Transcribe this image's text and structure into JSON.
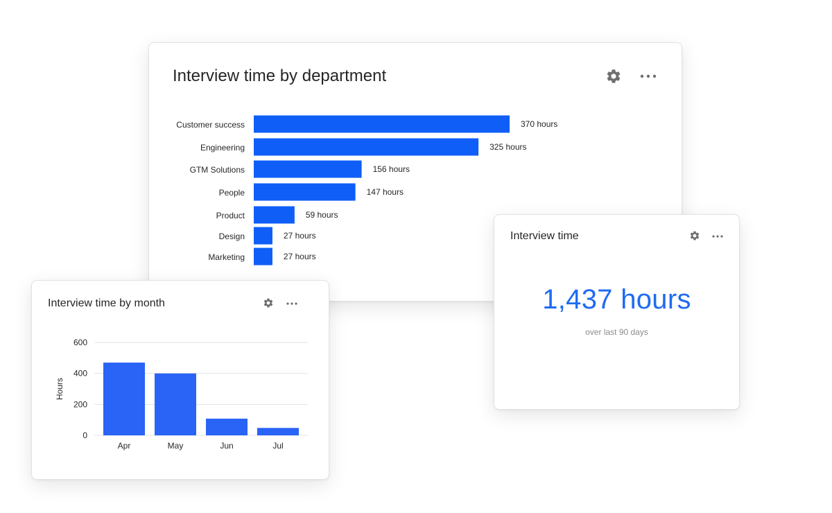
{
  "theme": {
    "accent": "#1f6bf2",
    "bar": "#0f5ef7",
    "bar_month": "#2a64f6",
    "grid": "#e3e3e3"
  },
  "icons": {
    "settings": "gear-icon",
    "more": "more-horizontal-icon"
  },
  "dept_card": {
    "title": "Interview time by department"
  },
  "total_card": {
    "title": "Interview time",
    "value": "1,437 hours",
    "subtitle": "over last 90 days"
  },
  "month_card": {
    "title": "Interview time by month"
  },
  "chart_data": [
    {
      "type": "bar",
      "orientation": "horizontal",
      "title": "Interview time by department",
      "categories": [
        "Customer success",
        "Engineering",
        "GTM Solutions",
        "People",
        "Product",
        "Design",
        "Marketing"
      ],
      "values": [
        370,
        325,
        156,
        147,
        59,
        27,
        27
      ],
      "value_labels": [
        "370 hours",
        "325 hours",
        "156 hours",
        "147 hours",
        "59 hours",
        "27 hours",
        "27 hours"
      ],
      "xlim": [
        0,
        370
      ],
      "grid": false
    },
    {
      "type": "bar",
      "title": "Interview time by month",
      "categories": [
        "Apr",
        "May",
        "Jun",
        "Jul"
      ],
      "values": [
        470,
        400,
        108,
        48
      ],
      "ylabel": "Hours",
      "ylim": [
        0,
        600
      ],
      "yticks": [
        0,
        200,
        400,
        600
      ],
      "grid": true
    }
  ]
}
